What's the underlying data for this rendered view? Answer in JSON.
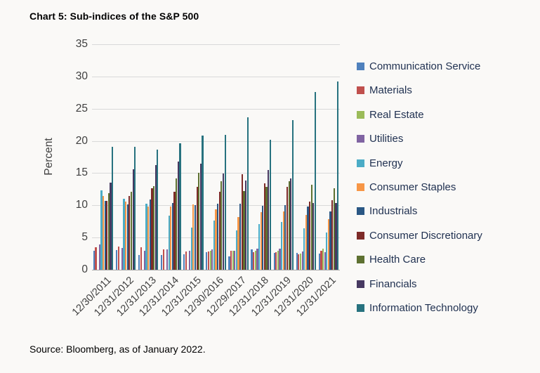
{
  "title": "Chart 5: Sub-indices of the S&P 500",
  "source": "Source: Bloomberg, as of January 2022.",
  "chart_data": {
    "type": "bar",
    "title": "Chart 5: Sub-indices of the S&P 500",
    "xlabel": "",
    "ylabel": "Percent",
    "ylim": [
      0,
      35
    ],
    "yticks": [
      0,
      5,
      10,
      15,
      20,
      25,
      30,
      35
    ],
    "grid": "horizontal",
    "legend_position": "right",
    "categories": [
      "12/30/2011",
      "12/31/2012",
      "12/31/2013",
      "12/31/2014",
      "12/31/2015",
      "12/30/2016",
      "12/29/2017",
      "12/31/2018",
      "12/31/2019",
      "12/31/2020",
      "12/31/2021"
    ],
    "series": [
      {
        "name": "Communication Service",
        "color": "#4F81BD",
        "values": [
          3.0,
          3.1,
          2.3,
          2.3,
          2.4,
          2.7,
          2.1,
          3.2,
          2.6,
          2.6,
          2.5
        ]
      },
      {
        "name": "Materials",
        "color": "#C0504D",
        "values": [
          3.5,
          3.6,
          3.5,
          3.2,
          2.8,
          2.8,
          3.0,
          2.7,
          2.7,
          2.4,
          2.9
        ]
      },
      {
        "name": "Real Estate",
        "color": "#9BBB59",
        "values": [
          0,
          0,
          0,
          0,
          0,
          2.9,
          2.9,
          3.0,
          2.9,
          2.5,
          3.3
        ]
      },
      {
        "name": "Utilities",
        "color": "#8064A2",
        "values": [
          3.9,
          3.4,
          2.9,
          3.2,
          3.0,
          3.2,
          2.9,
          3.3,
          3.3,
          2.8,
          2.7
        ]
      },
      {
        "name": "Energy",
        "color": "#4BACC6",
        "values": [
          12.3,
          11.0,
          10.3,
          8.4,
          6.5,
          7.6,
          6.1,
          7.1,
          7.4,
          6.4,
          5.8
        ]
      },
      {
        "name": "Consumer Staples",
        "color": "#F79646",
        "values": [
          11.5,
          10.6,
          9.8,
          9.8,
          10.1,
          9.4,
          8.2,
          9.0,
          9.1,
          8.5,
          7.9
        ]
      },
      {
        "name": "Industrials",
        "color": "#2A5784",
        "values": [
          10.7,
          10.1,
          10.9,
          10.4,
          10.0,
          10.3,
          10.3,
          9.9,
          10.0,
          9.8,
          9.1
        ]
      },
      {
        "name": "Consumer Discretionary",
        "color": "#7E2B28",
        "values": [
          10.7,
          11.5,
          12.7,
          12.1,
          12.9,
          12.1,
          14.8,
          13.4,
          12.9,
          10.6,
          10.8
        ]
      },
      {
        "name": "Health Care",
        "color": "#5E7131",
        "values": [
          11.9,
          12.1,
          13.0,
          14.2,
          15.1,
          13.7,
          12.2,
          12.9,
          13.7,
          13.2,
          12.6
        ]
      },
      {
        "name": "Financials",
        "color": "#473961",
        "values": [
          13.5,
          15.6,
          16.2,
          16.8,
          16.5,
          14.9,
          13.9,
          15.5,
          14.2,
          10.4,
          10.4
        ]
      },
      {
        "name": "Information Technology",
        "color": "#27727F",
        "values": [
          19.1,
          19.1,
          18.7,
          19.6,
          20.8,
          20.9,
          23.7,
          20.2,
          23.2,
          27.6,
          29.2
        ]
      }
    ]
  }
}
